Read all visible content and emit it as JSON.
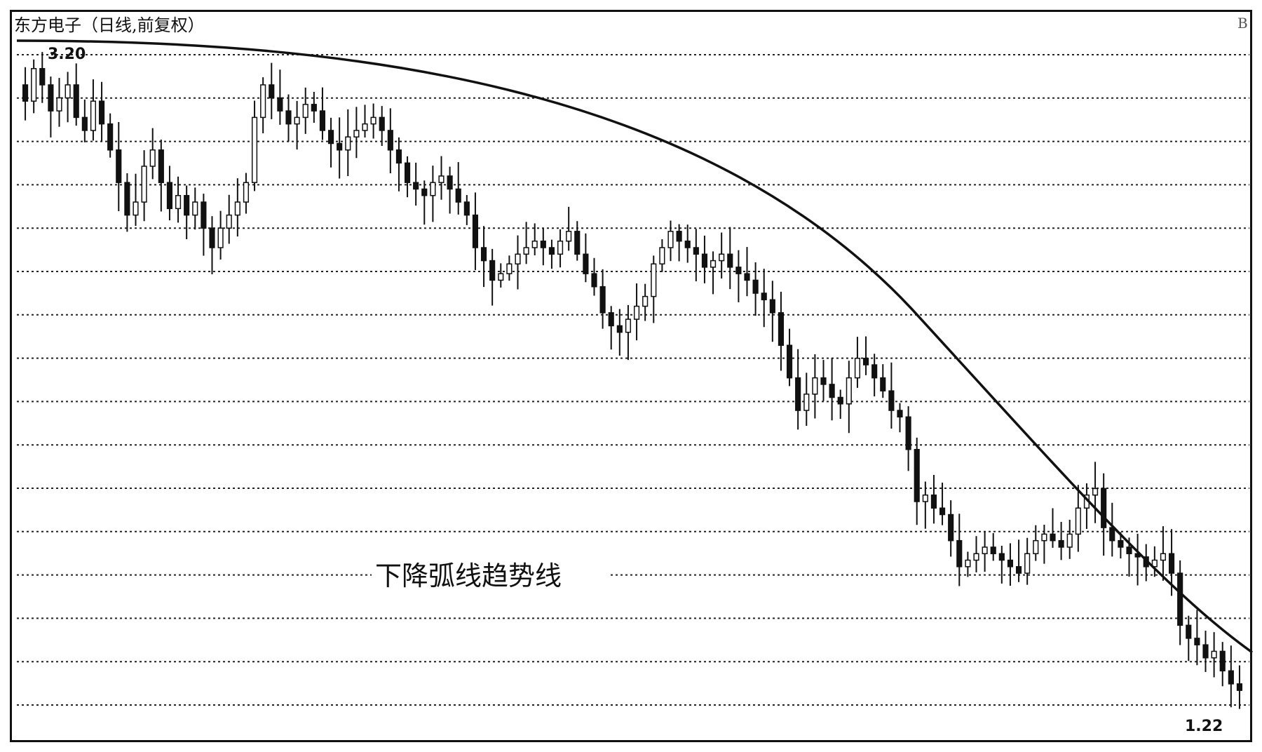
{
  "chart_data": {
    "type": "candlestick",
    "title": "东方电子（日线,前复权）",
    "annotation": "下降弧线趋势线",
    "high_label": "3.20",
    "low_label": "1.22",
    "corner_label": "B",
    "grid": true,
    "trendline": "arc",
    "series_close": [
      3.05,
      3.15,
      3.1,
      3.02,
      3.06,
      3.1,
      3.0,
      2.96,
      3.05,
      2.98,
      2.9,
      2.8,
      2.7,
      2.74,
      2.85,
      2.9,
      2.8,
      2.72,
      2.76,
      2.7,
      2.74,
      2.66,
      2.6,
      2.66,
      2.7,
      2.74,
      2.8,
      3.0,
      3.1,
      3.06,
      3.02,
      2.98,
      3.0,
      3.04,
      3.02,
      2.96,
      2.92,
      2.9,
      2.94,
      2.96,
      2.98,
      3.0,
      2.96,
      2.9,
      2.86,
      2.8,
      2.78,
      2.76,
      2.8,
      2.82,
      2.78,
      2.74,
      2.7,
      2.6,
      2.56,
      2.5,
      2.52,
      2.55,
      2.58,
      2.6,
      2.62,
      2.6,
      2.58,
      2.62,
      2.65,
      2.58,
      2.52,
      2.48,
      2.4,
      2.36,
      2.34,
      2.38,
      2.42,
      2.45,
      2.55,
      2.6,
      2.65,
      2.62,
      2.6,
      2.58,
      2.54,
      2.56,
      2.58,
      2.54,
      2.52,
      2.5,
      2.46,
      2.44,
      2.4,
      2.3,
      2.2,
      2.1,
      2.15,
      2.2,
      2.18,
      2.14,
      2.12,
      2.2,
      2.26,
      2.24,
      2.2,
      2.16,
      2.1,
      2.08,
      1.98,
      1.82,
      1.84,
      1.8,
      1.78,
      1.7,
      1.62,
      1.64,
      1.66,
      1.68,
      1.66,
      1.64,
      1.62,
      1.6,
      1.66,
      1.7,
      1.72,
      1.7,
      1.68,
      1.72,
      1.8,
      1.84,
      1.86,
      1.74,
      1.7,
      1.68,
      1.66,
      1.65,
      1.62,
      1.64,
      1.66,
      1.6,
      1.44,
      1.4,
      1.38,
      1.34,
      1.36,
      1.3,
      1.26,
      1.24
    ]
  }
}
